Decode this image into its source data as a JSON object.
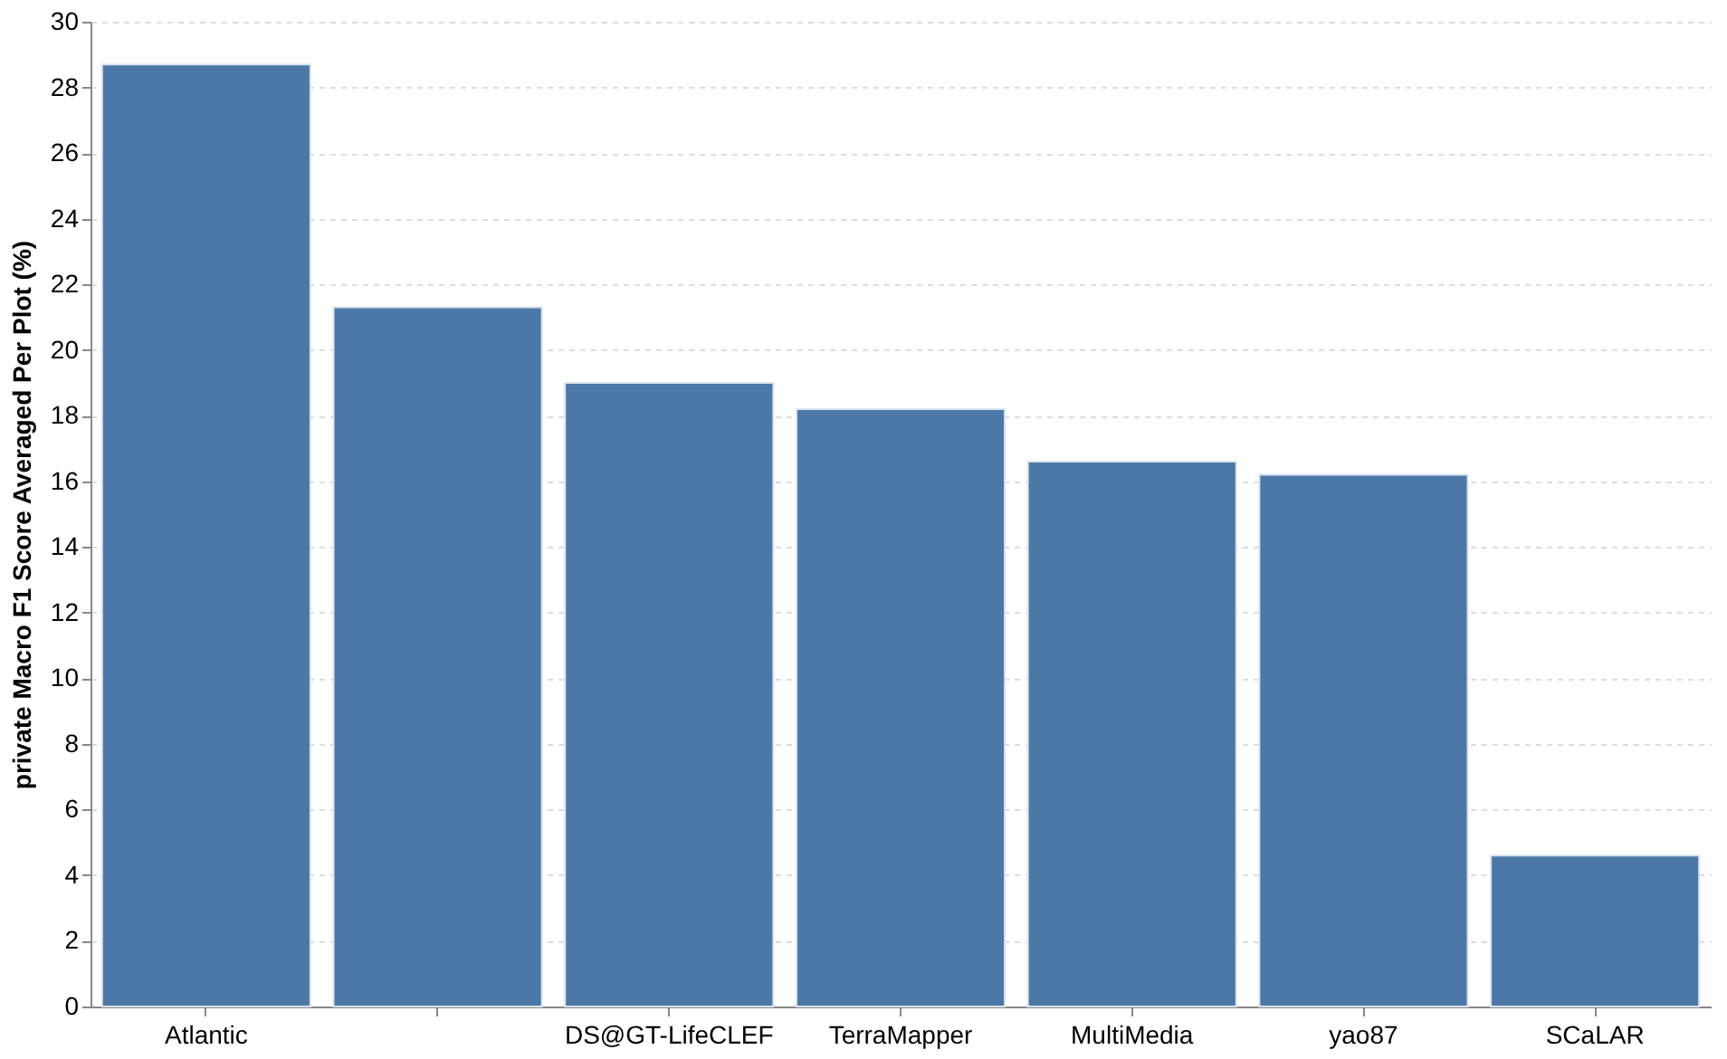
{
  "chart_data": {
    "type": "bar",
    "ylabel": "private Macro F1 Score Averaged Per Plot (%)",
    "categories": [
      "Atlantic",
      null,
      "DS@GT-LifeCLEF",
      "TerraMapper",
      "MultiMedia",
      "yao87",
      "SCaLAR"
    ],
    "values": [
      28.7,
      21.3,
      19.0,
      18.2,
      16.6,
      16.2,
      4.6
    ],
    "color": "#4c78a8",
    "ylim": [
      0,
      30
    ],
    "yticks": [
      0,
      2,
      4,
      6,
      8,
      10,
      12,
      14,
      16,
      18,
      20,
      22,
      24,
      26,
      28,
      30
    ],
    "grid": "y"
  }
}
